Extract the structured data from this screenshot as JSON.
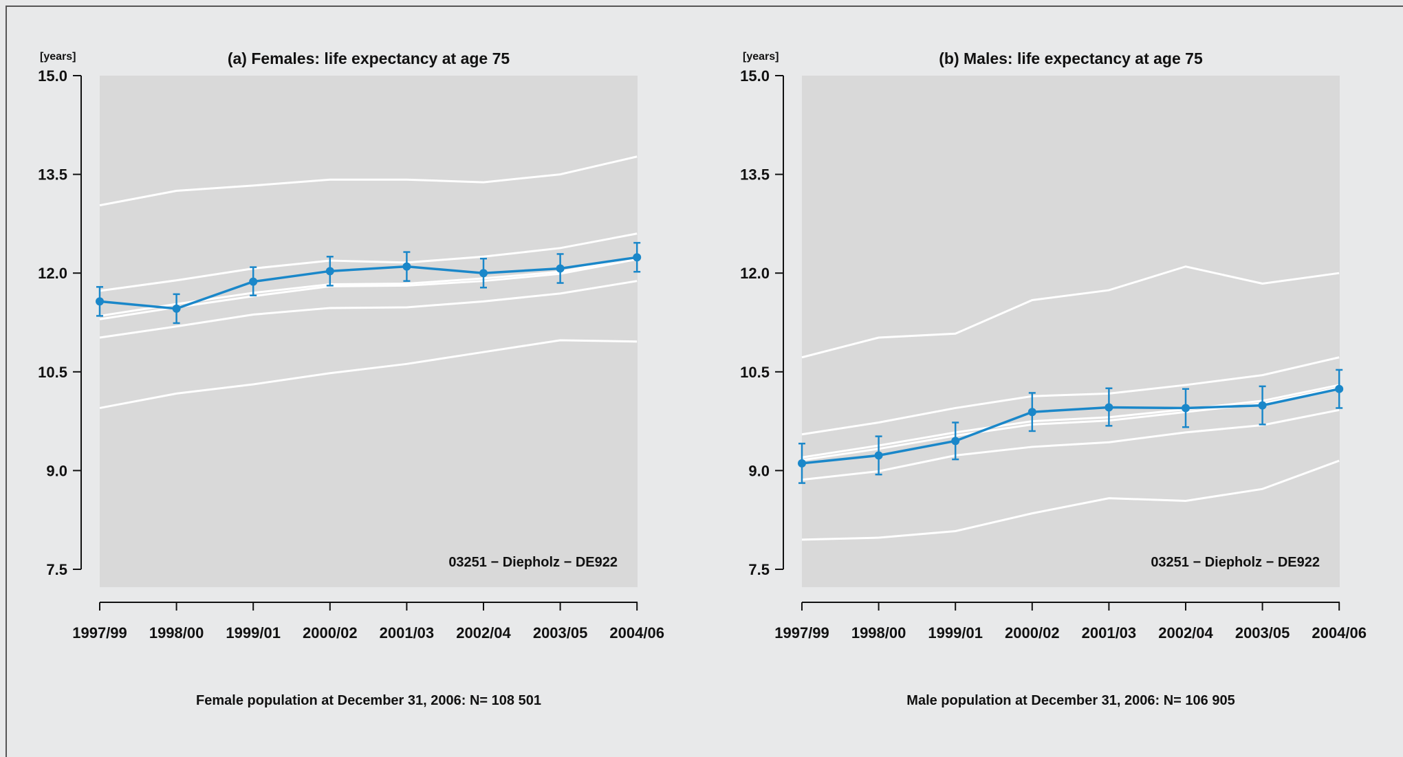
{
  "chart_data": [
    {
      "type": "line",
      "title": "(a) Females: life expectancy at age 75",
      "ylabel": "[years]",
      "xlabel": "",
      "categories": [
        "1997/99",
        "1998/00",
        "1999/01",
        "2000/02",
        "2001/03",
        "2002/04",
        "2003/05",
        "2004/06"
      ],
      "ylim": [
        7.5,
        15.0
      ],
      "yticks": [
        "7.5",
        "9.0",
        "10.5",
        "12.0",
        "13.5",
        "15.0"
      ],
      "annotation": "03251 − Diepholz − DE922",
      "population_note": "Female population at December 31, 2006: N= 108 501",
      "colors": {
        "highlight": "#1a87c9",
        "background_lines": "#ffffff",
        "panel": "#d9d9d9"
      },
      "series": [
        {
          "values": [
            11.57,
            11.46,
            11.87,
            12.03,
            12.1,
            12.0,
            12.07,
            12.24
          ],
          "error_low": [
            11.35,
            11.24,
            11.66,
            11.81,
            11.88,
            11.78,
            11.85,
            12.02
          ],
          "error_high": [
            11.79,
            11.68,
            12.09,
            12.25,
            12.32,
            12.22,
            12.29,
            12.46
          ],
          "highlight": true
        },
        {
          "values": [
            13.03,
            13.25,
            13.33,
            13.42,
            13.42,
            13.38,
            13.5,
            13.77
          ]
        },
        {
          "values": [
            11.73,
            11.89,
            12.07,
            12.19,
            12.16,
            12.25,
            12.38,
            12.6
          ]
        },
        {
          "values": [
            11.35,
            11.53,
            11.7,
            11.83,
            11.84,
            11.92,
            12.02,
            12.25
          ]
        },
        {
          "values": [
            11.3,
            11.48,
            11.65,
            11.8,
            11.81,
            11.88,
            11.99,
            12.21
          ]
        },
        {
          "values": [
            11.02,
            11.19,
            11.37,
            11.47,
            11.48,
            11.57,
            11.69,
            11.88
          ]
        },
        {
          "values": [
            9.95,
            10.17,
            10.31,
            10.48,
            10.62,
            10.8,
            10.98,
            10.96
          ]
        }
      ]
    },
    {
      "type": "line",
      "title": "(b) Males: life expectancy at age 75",
      "ylabel": "[years]",
      "xlabel": "",
      "categories": [
        "1997/99",
        "1998/00",
        "1999/01",
        "2000/02",
        "2001/03",
        "2002/04",
        "2003/05",
        "2004/06"
      ],
      "ylim": [
        7.5,
        15.0
      ],
      "yticks": [
        "7.5",
        "9.0",
        "10.5",
        "12.0",
        "13.5",
        "15.0"
      ],
      "annotation": "03251 − Diepholz − DE922",
      "population_note": "Male population at December 31, 2006: N= 106 905",
      "colors": {
        "highlight": "#1a87c9",
        "background_lines": "#ffffff",
        "panel": "#d9d9d9"
      },
      "series": [
        {
          "values": [
            9.11,
            9.23,
            9.45,
            9.89,
            9.96,
            9.95,
            9.99,
            10.24
          ],
          "error_low": [
            8.81,
            8.94,
            9.17,
            9.6,
            9.68,
            9.66,
            9.7,
            9.95
          ],
          "error_high": [
            9.41,
            9.52,
            9.73,
            10.18,
            10.25,
            10.24,
            10.28,
            10.53
          ],
          "highlight": true
        },
        {
          "values": [
            10.72,
            11.02,
            11.08,
            11.59,
            11.74,
            12.1,
            11.84,
            12.0
          ]
        },
        {
          "values": [
            9.55,
            9.73,
            9.95,
            10.13,
            10.17,
            10.3,
            10.45,
            10.72
          ]
        },
        {
          "values": [
            9.2,
            9.38,
            9.58,
            9.75,
            9.81,
            9.93,
            10.06,
            10.3
          ]
        },
        {
          "values": [
            9.16,
            9.33,
            9.53,
            9.7,
            9.76,
            9.89,
            10.02,
            10.26
          ]
        },
        {
          "values": [
            8.86,
            8.99,
            9.23,
            9.36,
            9.43,
            9.58,
            9.69,
            9.92
          ]
        },
        {
          "values": [
            7.95,
            7.98,
            8.08,
            8.35,
            8.58,
            8.54,
            8.72,
            9.15
          ]
        }
      ]
    }
  ]
}
